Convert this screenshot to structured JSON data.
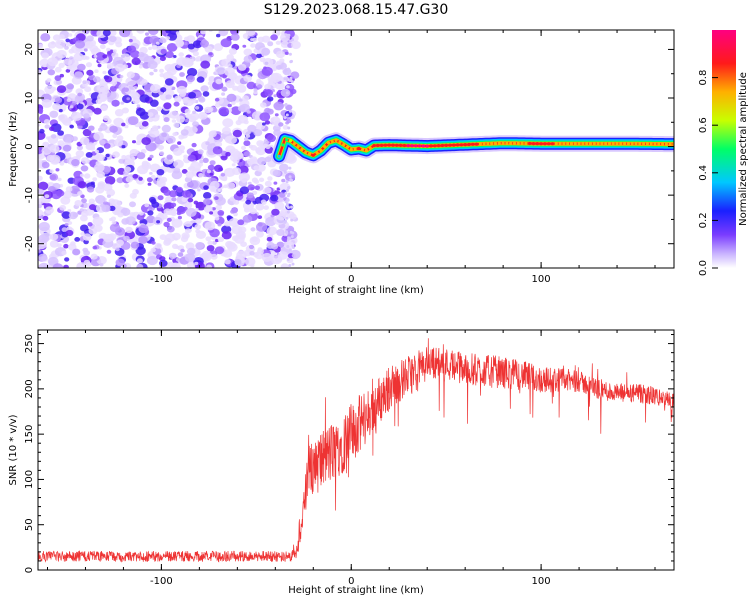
{
  "title": "S129.2023.068.15.47.G30",
  "chart_data": [
    {
      "type": "heatmap",
      "xlabel": "Height of straight line (km)",
      "ylabel": "Frequency (Hz)",
      "xlim": [
        -165,
        170
      ],
      "ylim": [
        -25,
        24
      ],
      "xticks": [
        -100,
        0,
        100
      ],
      "yticks": [
        -20,
        -10,
        0,
        10,
        20
      ],
      "colorbar": {
        "label": "Normalized spectral amplitude",
        "range": [
          0.0,
          1.0
        ],
        "ticks": [
          0.0,
          0.2,
          0.4,
          0.6,
          0.8
        ],
        "colors": [
          "#ffffff",
          "#c9b3ff",
          "#7a3cff",
          "#1a20ff",
          "#00c8ff",
          "#00ff66",
          "#c8ff00",
          "#ffb000",
          "#ff1a1a",
          "#ff0080"
        ]
      },
      "noise_region_x": [
        -165,
        -35
      ],
      "signal_track": {
        "x": [
          -38,
          -35,
          -32,
          -28,
          -24,
          -20,
          -16,
          -12,
          -8,
          -4,
          0,
          4,
          8,
          12,
          20,
          30,
          40,
          60,
          80,
          100,
          120,
          140,
          170
        ],
        "freq": [
          -2,
          1.5,
          1.2,
          0.0,
          -1.2,
          -1.8,
          -0.8,
          0.8,
          1.3,
          0.4,
          -0.6,
          -0.4,
          -0.8,
          0.2,
          0.3,
          0.2,
          0.1,
          0.4,
          0.7,
          0.6,
          0.6,
          0.6,
          0.5
        ],
        "amplitude": [
          0.4,
          0.55,
          0.7,
          0.75,
          0.8,
          0.85,
          0.8,
          0.8,
          0.8,
          0.8,
          0.8,
          0.85,
          0.8,
          0.85,
          0.9,
          0.95,
          0.95,
          0.85,
          0.8,
          0.85,
          0.8,
          0.8,
          0.8
        ]
      }
    },
    {
      "type": "line",
      "xlabel": "Height of straight line (km)",
      "ylabel": "SNR (10 * v/v)",
      "xlim": [
        -165,
        170
      ],
      "ylim": [
        0,
        265
      ],
      "xticks": [
        -100,
        0,
        100
      ],
      "yticks": [
        0,
        50,
        100,
        150,
        200,
        250
      ],
      "color": "#ee3333",
      "trend": {
        "x": [
          -165,
          -60,
          -32,
          -28,
          -22,
          -20,
          -10,
          0,
          10,
          20,
          30,
          40,
          50,
          60,
          70,
          80,
          90,
          100,
          110,
          120,
          130,
          140,
          150,
          160,
          170
        ],
        "y": [
          15,
          15,
          15,
          30,
          110,
          115,
          130,
          150,
          175,
          200,
          215,
          230,
          228,
          222,
          220,
          218,
          215,
          210,
          210,
          208,
          200,
          195,
          195,
          192,
          185
        ]
      },
      "noise": {
        "x": [
          -165,
          -32,
          -20,
          0,
          20,
          40,
          80,
          120,
          170
        ],
        "amp": [
          6,
          6,
          35,
          35,
          25,
          18,
          18,
          12,
          10
        ]
      }
    }
  ]
}
